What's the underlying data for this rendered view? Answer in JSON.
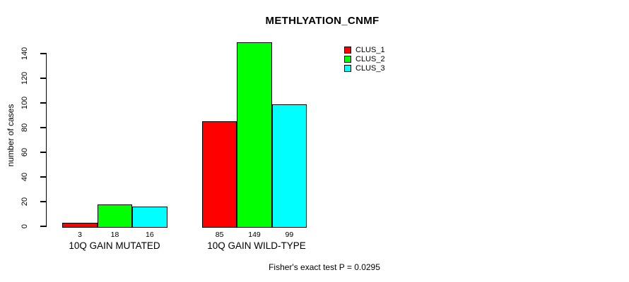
{
  "chart_data": {
    "type": "bar",
    "title": "METHLYATION_CNMF",
    "ylabel": "number of cases",
    "xlabel": "",
    "categories": [
      "10Q GAIN MUTATED",
      "10Q GAIN WILD-TYPE"
    ],
    "series": [
      {
        "name": "CLUS_1",
        "color": "#FF0000",
        "values": [
          3,
          85
        ]
      },
      {
        "name": "CLUS_2",
        "color": "#00FF00",
        "values": [
          18,
          149
        ]
      },
      {
        "name": "CLUS_3",
        "color": "#00FFFF",
        "values": [
          16,
          99
        ]
      }
    ],
    "yticks": [
      0,
      20,
      40,
      60,
      80,
      100,
      120,
      140
    ],
    "ylim": [
      0,
      150
    ],
    "grid": false,
    "legend_position": "top-right",
    "bar_border_color": "#000000",
    "background_color": "#FFFFFF",
    "footer": "Fisher's exact test P = 0.0295"
  }
}
